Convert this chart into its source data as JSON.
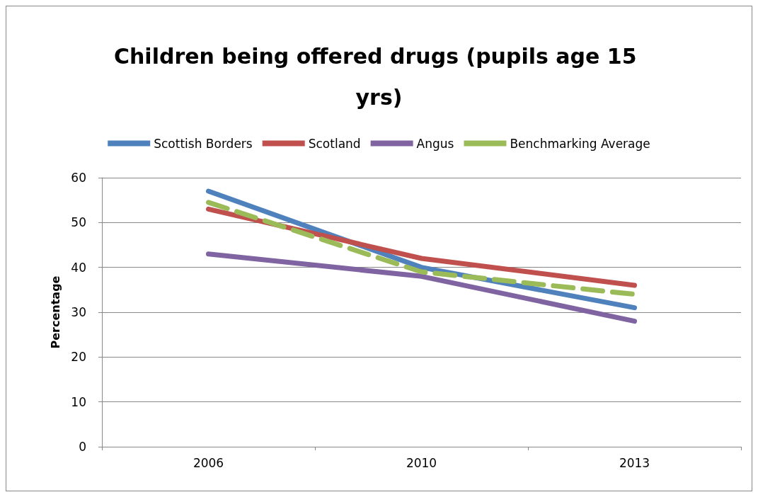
{
  "chart_data": {
    "type": "line",
    "title": "Children being offered drugs (pupils age 15 yrs)",
    "ylabel": "Percentage",
    "categories": [
      "2006",
      "2010",
      "2013"
    ],
    "series": [
      {
        "name": "Scottish Borders",
        "color": "#4f81bd",
        "values": [
          57,
          40,
          31
        ]
      },
      {
        "name": "Scotland",
        "color": "#c0504d",
        "values": [
          53,
          42,
          36
        ]
      },
      {
        "name": "Angus",
        "color": "#8064a2",
        "values": [
          43,
          38,
          28
        ]
      },
      {
        "name": "Benchmarking Average",
        "color": "#9bbb59",
        "values": [
          54.5,
          39,
          34
        ],
        "line_style": "dashed"
      }
    ],
    "ylim": [
      0,
      60
    ],
    "yticks": [
      0,
      10,
      20,
      30,
      40,
      50,
      60
    ],
    "grid": "y",
    "legend": "top",
    "marker": "none",
    "line_style": "solid"
  }
}
